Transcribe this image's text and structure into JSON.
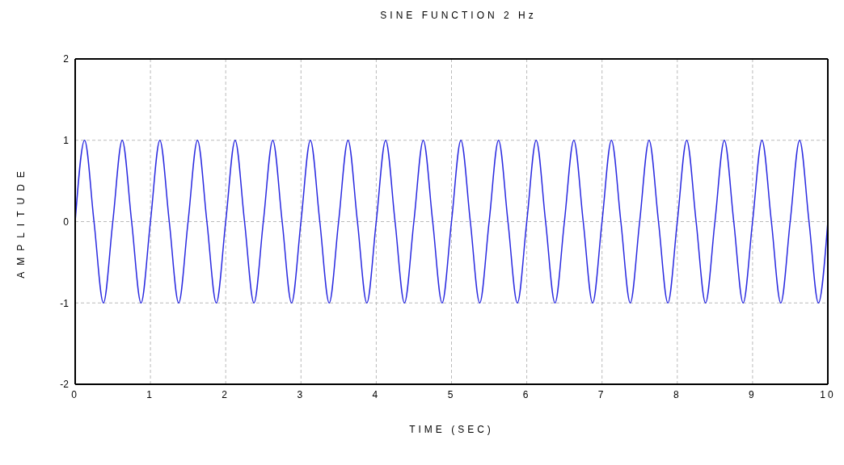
{
  "chart_data": {
    "type": "line",
    "title": "SINE FUNCTION 2 Hz",
    "xlabel": "TIME (SEC)",
    "ylabel": "AMPLITUDE",
    "x": [
      0,
      0.125,
      0.25,
      0.375,
      0.5,
      0.625,
      0.75,
      0.875,
      1,
      1.125,
      1.25,
      1.375,
      1.5,
      1.625,
      1.75,
      1.875,
      2,
      2.125,
      2.25,
      2.375,
      2.5,
      2.625,
      2.75,
      2.875,
      3,
      3.125,
      3.25,
      3.375,
      3.5,
      3.625,
      3.75,
      3.875,
      4,
      4.125,
      4.25,
      4.375,
      4.5,
      4.625,
      4.75,
      4.875,
      5,
      5.125,
      5.25,
      5.375,
      5.5,
      5.625,
      5.75,
      5.875,
      6,
      6.125,
      6.25,
      6.375,
      6.5,
      6.625,
      6.75,
      6.875,
      7,
      7.125,
      7.25,
      7.375,
      7.5,
      7.625,
      7.75,
      7.875,
      8,
      8.125,
      8.25,
      8.375,
      8.5,
      8.625,
      8.75,
      8.875,
      9,
      9.125,
      9.25,
      9.375,
      9.5,
      9.625,
      9.75,
      9.875,
      10
    ],
    "series": [
      {
        "color": "#2a2ae0",
        "values": [
          0,
          1,
          0,
          -1,
          0,
          1,
          0,
          -1,
          0,
          1,
          0,
          -1,
          0,
          1,
          0,
          -1,
          0,
          1,
          0,
          -1,
          0,
          1,
          0,
          -1,
          0,
          1,
          0,
          -1,
          0,
          1,
          0,
          -1,
          0,
          1,
          0,
          -1,
          0,
          1,
          0,
          -1,
          0,
          1,
          0,
          -1,
          0,
          1,
          0,
          -1,
          0,
          1,
          0,
          -1,
          0,
          1,
          0,
          -1,
          0,
          1,
          0,
          -1,
          0,
          1,
          0,
          -1,
          0,
          1,
          0,
          -1,
          0,
          1,
          0,
          -1,
          0,
          1,
          0,
          -1,
          0,
          1,
          0,
          -1,
          0
        ]
      }
    ],
    "xlim": [
      0,
      10
    ],
    "xticks": [
      0,
      1,
      2,
      3,
      4,
      5,
      6,
      7,
      8,
      9,
      10
    ],
    "ylim": [
      -2,
      2
    ],
    "yticks": [
      -2,
      -1,
      0,
      1,
      2
    ],
    "grid": true,
    "marker": "none",
    "line_style": "solid"
  }
}
